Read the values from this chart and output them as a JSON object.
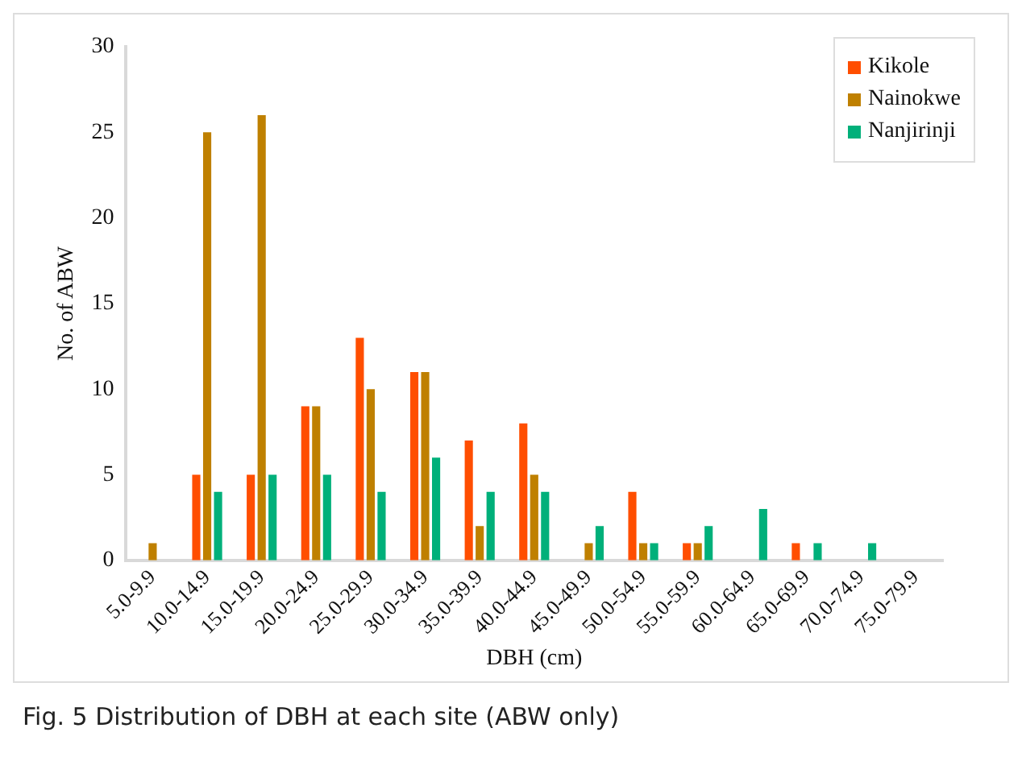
{
  "chart_data": {
    "type": "bar",
    "title": "Fig. 5 Distribution of DBH at each site (ABW only)",
    "xlabel": "DBH (cm)",
    "ylabel": "No. of ABW",
    "categories": [
      "5.0-9.9",
      "10.0-14.9",
      "15.0-19.9",
      "20.0-24.9",
      "25.0-29.9",
      "30.0-34.9",
      "35.0-39.9",
      "40.0-44.9",
      "45.0-49.9",
      "50.0-54.9",
      "55.0-59.9",
      "60.0-64.9",
      "65.0-69.9",
      "70.0-74.9",
      "75.0-79.9"
    ],
    "series": [
      {
        "name": "Kikole",
        "color": "#ff4e00",
        "values": [
          0,
          5,
          5,
          9,
          13,
          11,
          7,
          8,
          0,
          4,
          1,
          0,
          1,
          0,
          0
        ]
      },
      {
        "name": "Nainokwe",
        "color": "#bf8000",
        "values": [
          1,
          25,
          26,
          9,
          10,
          11,
          2,
          5,
          1,
          1,
          1,
          0,
          0,
          0,
          0
        ]
      },
      {
        "name": "Nanjirinji",
        "color": "#00b07a",
        "values": [
          0,
          4,
          5,
          5,
          4,
          6,
          4,
          4,
          2,
          1,
          2,
          3,
          1,
          1,
          0
        ]
      }
    ],
    "ylim": [
      0,
      30
    ],
    "yticks": [
      0,
      5,
      10,
      15,
      20,
      25,
      30
    ],
    "grid": false,
    "legend": "top right"
  }
}
